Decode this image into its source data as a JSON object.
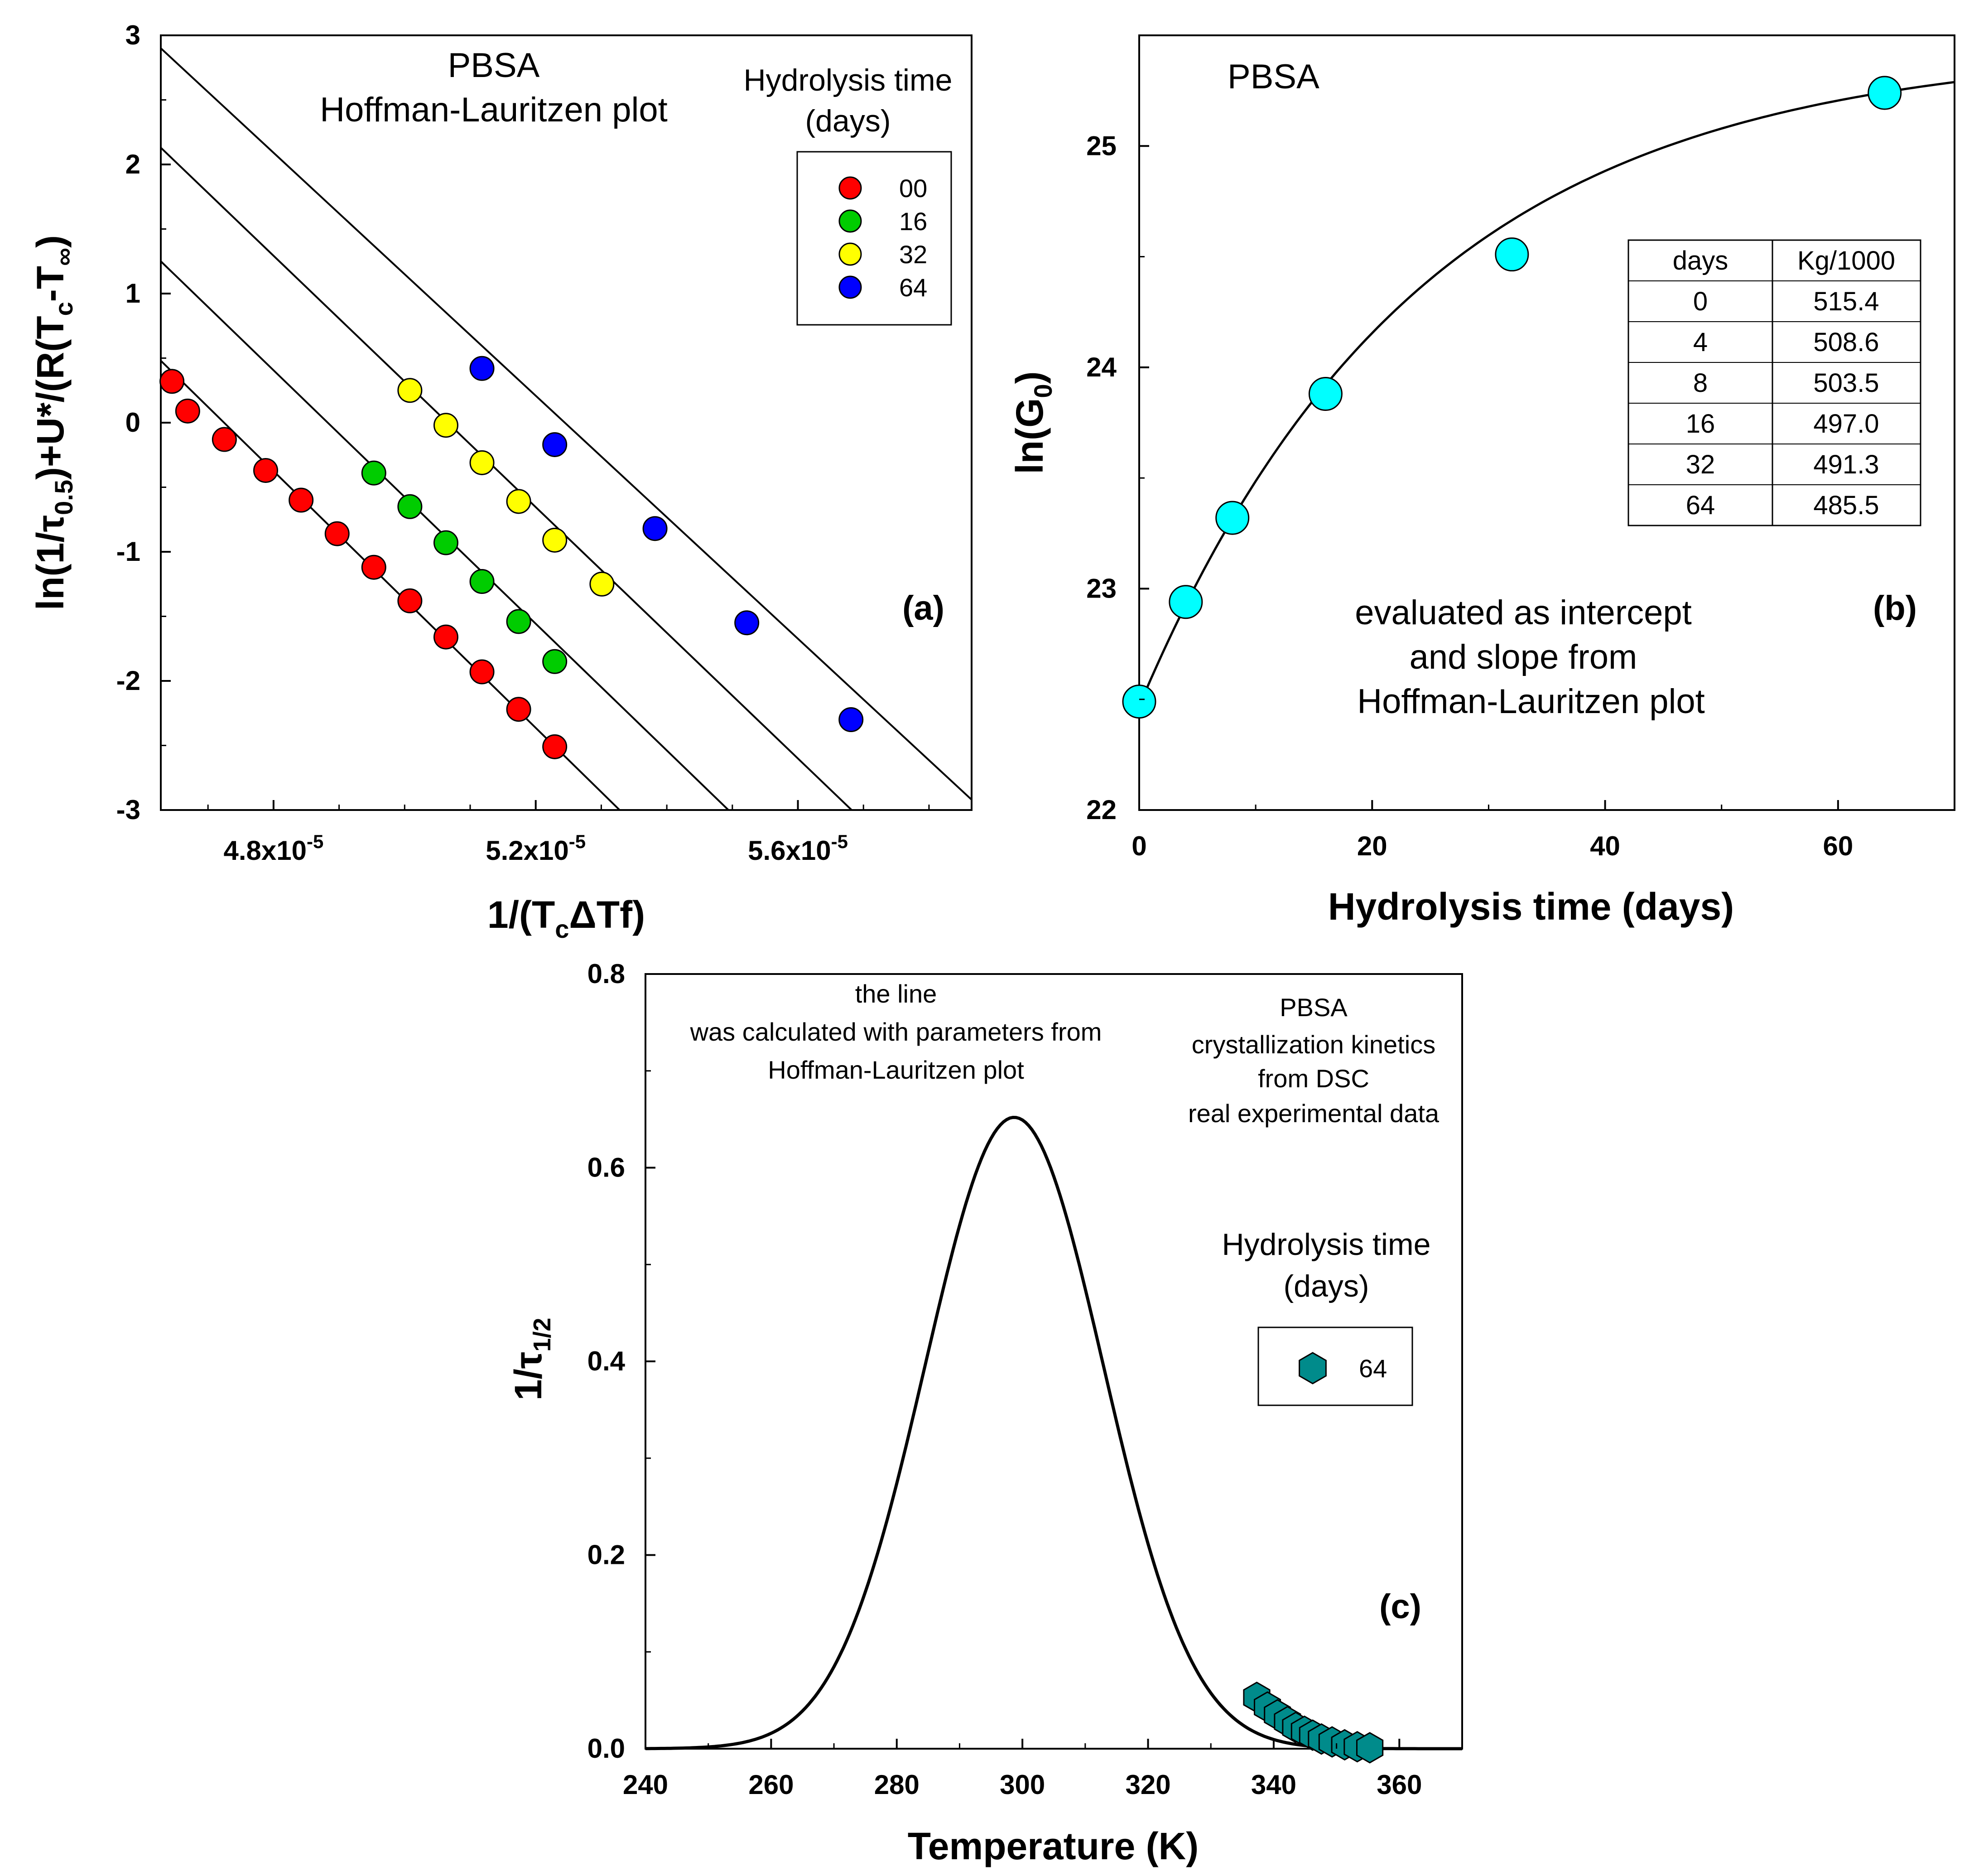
{
  "chart_data": [
    {
      "panel": "a",
      "type": "scatter",
      "title": "PBSA",
      "subtitle": "Hoffman-Lauritzen plot",
      "panel_label": "(a)",
      "xlabel_parts": {
        "a": "1/(T",
        "b": "c",
        "c": "ΔTf)"
      },
      "ylabel_parts": {
        "a": "ln(1/τ",
        "b": "0.5",
        "c": ")+U*/(R(T",
        "d": "c",
        "e": "-T",
        "f": "∞",
        "g": ")"
      },
      "xlim": [
        4.628e-05,
        5.865e-05
      ],
      "ylim": [
        -3,
        3
      ],
      "yticks": [
        "3",
        "2",
        "1",
        "0",
        "-1",
        "-2",
        "-3"
      ],
      "xticks": [
        {
          "value": 4.8e-05,
          "mantissa": "4.8x10",
          "exp": "-5"
        },
        {
          "value": 5.2e-05,
          "mantissa": "5.2x10",
          "exp": "-5"
        },
        {
          "value": 5.6e-05,
          "mantissa": "5.6x10",
          "exp": "-5"
        }
      ],
      "legend": {
        "title_line1": "Hydrolysis time",
        "title_line2": "(days)"
      },
      "series": [
        {
          "name": "00",
          "color": "#ff0000",
          "x": [
            4.645e-05,
            4.669e-05,
            4.725e-05,
            4.788e-05,
            4.842e-05,
            4.897e-05,
            4.953e-05,
            5.008e-05,
            5.063e-05,
            5.118e-05,
            5.174e-05,
            5.229e-05
          ],
          "y": [
            0.32,
            0.09,
            -0.13,
            -0.37,
            -0.6,
            -0.86,
            -1.12,
            -1.38,
            -1.66,
            -1.93,
            -2.22,
            -2.51
          ],
          "fit_line": {
            "x": [
              4.628e-05,
              5.328e-05
            ],
            "y": [
              0.48,
              -3.0
            ]
          }
        },
        {
          "name": "16",
          "color": "#00cc00",
          "x": [
            4.953e-05,
            5.008e-05,
            5.063e-05,
            5.118e-05,
            5.174e-05,
            5.229e-05
          ],
          "y": [
            -0.39,
            -0.65,
            -0.93,
            -1.23,
            -1.54,
            -1.85
          ],
          "fit_line": {
            "x": [
              4.628e-05,
              5.494e-05
            ],
            "y": [
              1.25,
              -3.0
            ]
          }
        },
        {
          "name": "32",
          "color": "#ffff00",
          "x": [
            5.008e-05,
            5.063e-05,
            5.118e-05,
            5.174e-05,
            5.229e-05,
            5.301e-05
          ],
          "y": [
            0.25,
            -0.02,
            -0.31,
            -0.61,
            -0.91,
            -1.25
          ],
          "fit_line": {
            "x": [
              4.628e-05,
              5.682e-05
            ],
            "y": [
              2.13,
              -3.0
            ]
          }
        },
        {
          "name": "64",
          "color": "#0000ff",
          "x": [
            5.118e-05,
            5.229e-05,
            5.382e-05,
            5.522e-05,
            5.681e-05
          ],
          "y": [
            0.42,
            -0.17,
            -0.82,
            -1.55,
            -2.3
          ],
          "fit_line": {
            "x": [
              4.628e-05,
              5.865e-05
            ],
            "y": [
              2.9,
              -2.92
            ]
          }
        }
      ]
    },
    {
      "panel": "b",
      "type": "scatter",
      "title": "PBSA",
      "panel_label": "(b)",
      "xlabel": "Hydrolysis time (days)",
      "ylabel_parts": {
        "a": "ln(G",
        "b": "0",
        "c": ")"
      },
      "xlim": [
        0,
        70
      ],
      "ylim": [
        22,
        25.5
      ],
      "xticks": [
        "0",
        "20",
        "40",
        "60"
      ],
      "yticks": [
        "22",
        "23",
        "24",
        "25"
      ],
      "marker_color": "#00ffff",
      "points": {
        "x": [
          0,
          4,
          8,
          16,
          32,
          64
        ],
        "y": [
          22.49,
          22.94,
          23.32,
          23.88,
          24.51,
          25.24
        ]
      },
      "fit_curve": {
        "form": "a - b*exp(-x/c)",
        "a": 25.45,
        "b": 2.98,
        "c": 24.0
      },
      "annotation_lines": [
        "evaluated as intercept",
        "and slope from",
        "Hoffman-Lauritzen plot"
      ],
      "table": {
        "headers": [
          "days",
          "Kg/1000"
        ],
        "rows": [
          [
            "0",
            "515.4"
          ],
          [
            "4",
            "508.6"
          ],
          [
            "8",
            "503.5"
          ],
          [
            "16",
            "497.0"
          ],
          [
            "32",
            "491.3"
          ],
          [
            "64",
            "485.5"
          ]
        ]
      }
    },
    {
      "panel": "c",
      "type": "scatter",
      "panel_label": "(c)",
      "xlabel": "Temperature (K)",
      "ylabel_parts": {
        "a": "1/τ",
        "b": "1/2"
      },
      "xlim": [
        240,
        370
      ],
      "ylim": [
        0,
        0.8
      ],
      "xticks": [
        "240",
        "260",
        "280",
        "300",
        "320",
        "340",
        "360"
      ],
      "yticks": [
        "0.0",
        "0.2",
        "0.4",
        "0.6",
        "0.8"
      ],
      "marker_color": "#008b8b",
      "curve": {
        "form": "gaussian",
        "peak_x": 298.7,
        "peak_y": 0.652,
        "sigma": 14.2
      },
      "points": {
        "x": [
          337.3,
          339.0,
          340.6,
          342.2,
          343.5,
          344.9,
          346.2,
          347.6,
          349.3,
          351.3,
          353.3,
          355.3
        ],
        "y": [
          0.053,
          0.043,
          0.035,
          0.028,
          0.022,
          0.018,
          0.014,
          0.01,
          0.007,
          0.004,
          0.002,
          0.001
        ]
      },
      "annotation_left": [
        "the line",
        "was calculated with parameters from",
        "Hoffman-Lauritzen plot"
      ],
      "annotation_right": [
        "PBSA",
        "crystallization kinetics",
        "from DSC",
        "real experimental data"
      ],
      "legend": {
        "title_line1": "Hydrolysis time",
        "title_line2": "(days)",
        "entries": [
          "64"
        ]
      }
    }
  ]
}
